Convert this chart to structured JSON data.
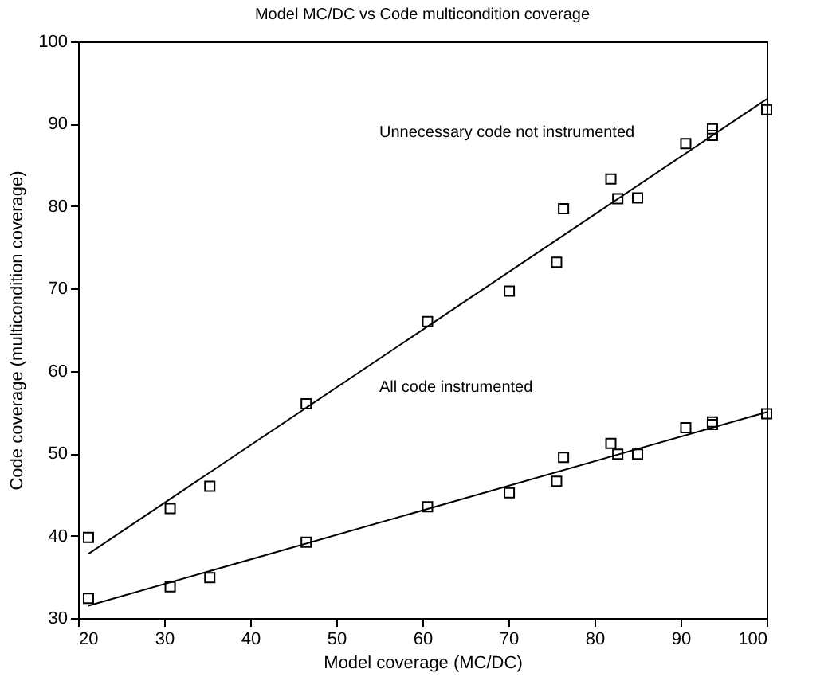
{
  "chart_data": {
    "type": "scatter",
    "title": "Model MC/DC vs Code multicondition coverage",
    "xlabel": "Model coverage (MC/DC)",
    "ylabel": "Code coverage (multicondition coverage)",
    "xlim": [
      20,
      100
    ],
    "xticks": [
      20,
      30,
      40,
      50,
      60,
      70,
      80,
      90,
      100
    ],
    "ylim": [
      30,
      100
    ],
    "yticks": [
      30,
      40,
      50,
      60,
      70,
      80,
      90,
      100
    ],
    "grid": false,
    "marker": "square",
    "series": [
      {
        "color": "#000000",
        "x": [
          21.2,
          30.7,
          35.3,
          46.5,
          60.6,
          70.1,
          75.6,
          76.4,
          81.9,
          82.7,
          85,
          90.6,
          93.7,
          93.7,
          100
        ],
        "values": [
          39.8,
          43.3,
          46,
          56,
          66,
          69.7,
          73.2,
          79.7,
          83.3,
          80.9,
          81,
          87.6,
          89.4,
          88.6,
          91.7
        ]
      },
      {
        "color": "#000000",
        "x": [
          21.2,
          30.7,
          35.3,
          46.5,
          60.6,
          70.1,
          75.6,
          76.4,
          81.9,
          82.7,
          85,
          90.6,
          93.7,
          93.7,
          100
        ],
        "values": [
          32.4,
          33.8,
          34.9,
          39.2,
          43.5,
          45.2,
          46.6,
          49.5,
          51.2,
          49.9,
          49.9,
          53.1,
          53.8,
          53.5,
          54.8
        ]
      },
      {
        "type": "line",
        "color": "#000000",
        "line_style": "solid",
        "marker": "none",
        "x": [
          21.2,
          100
        ],
        "values": [
          37.8,
          93
        ]
      },
      {
        "type": "line",
        "color": "#000000",
        "line_style": "solid",
        "marker": "none",
        "x": [
          21.2,
          100
        ],
        "values": [
          31.5,
          55
        ]
      }
    ],
    "annotations": [
      "Unnecessary code not instrumented",
      "All code instrumented"
    ]
  }
}
